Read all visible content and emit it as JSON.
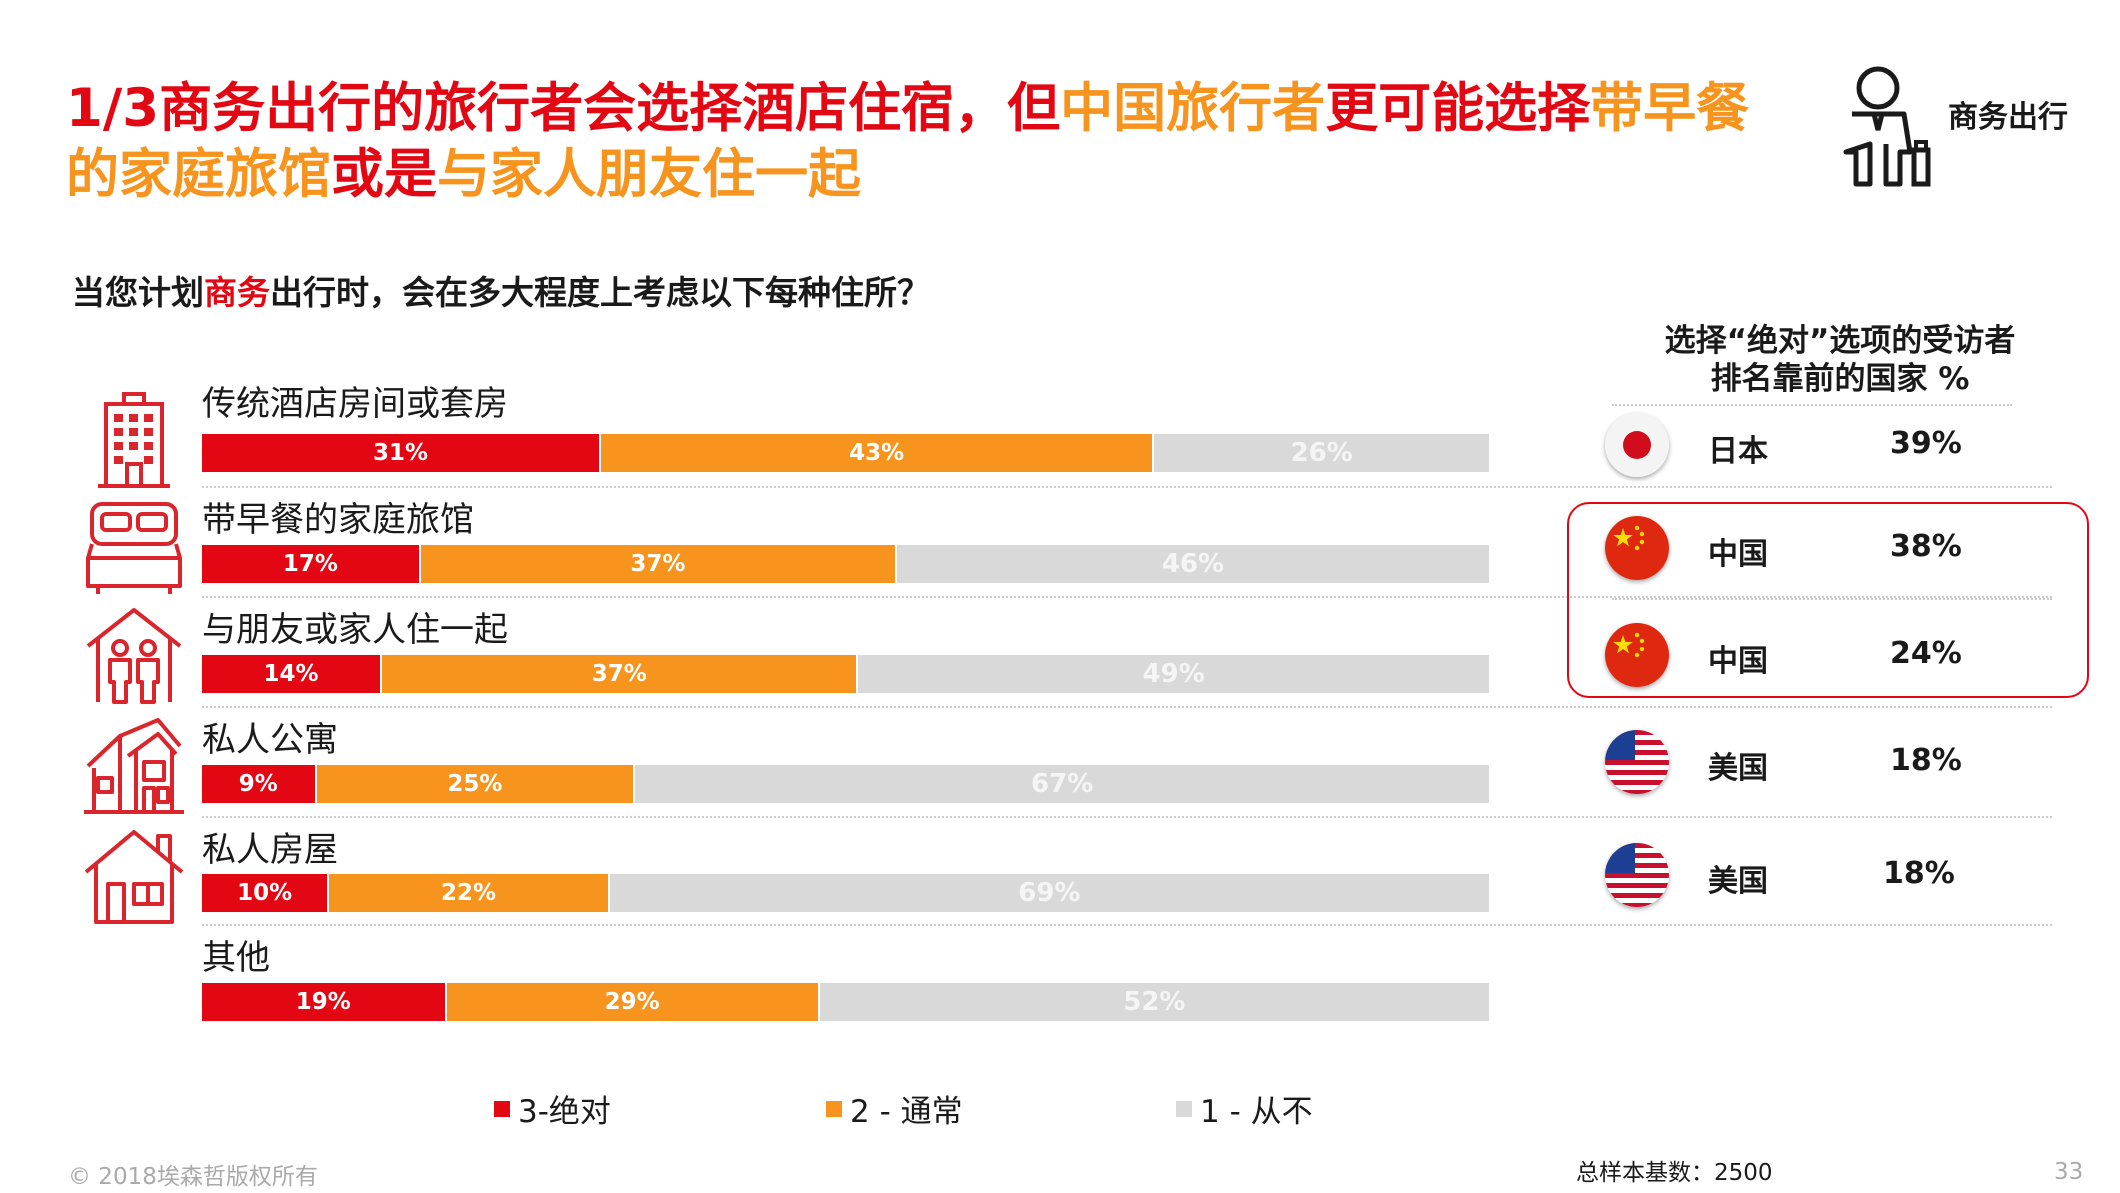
{
  "title": {
    "part1": "1/3商务出行的旅行者会选择酒店住宿，但",
    "part2": "中国旅行者",
    "part3": "更可能选择",
    "part4": "带早餐的家庭旅馆",
    "part5": "或是",
    "part6": "与家人朋友住一起"
  },
  "persona": {
    "label": "商务出行",
    "icon": "businessman-icon"
  },
  "question": {
    "prefix": "当您计划",
    "highlight": "商务",
    "suffix": "出行时，会在多大程度上考虑以下每种住所？"
  },
  "colors": {
    "red": "#e30613",
    "orange": "#f7941d",
    "grey": "#d9d9d9"
  },
  "chart_data": {
    "type": "bar",
    "orientation": "horizontal-stacked-100",
    "categories": [
      "传统酒店房间或套房",
      "带早餐的家庭旅馆",
      "与朋友或家人住一起",
      "私人公寓",
      "私人房屋",
      "其他"
    ],
    "category_icons": [
      "hotel-building-icon",
      "bed-icon",
      "family-house-icon",
      "apartment-icon",
      "house-icon",
      ""
    ],
    "series": [
      {
        "name": "3-绝对",
        "color": "#e30613",
        "values": [
          31,
          17,
          14,
          9,
          10,
          19
        ],
        "labels": [
          "31%",
          "17%",
          "14%",
          "9%",
          "10%",
          "19%"
        ]
      },
      {
        "name": "2 - 通常",
        "color": "#f7941d",
        "values": [
          43,
          37,
          37,
          25,
          22,
          29
        ],
        "labels": [
          "43%",
          "37%",
          "37%",
          "25%",
          "22%",
          "29%"
        ]
      },
      {
        "name": "1 - 从不",
        "color": "#d9d9d9",
        "values": [
          26,
          46,
          49,
          67,
          69,
          52
        ],
        "labels": [
          "26%",
          "46%",
          "49%",
          "67%",
          "69%",
          "52%"
        ]
      }
    ],
    "xlim": [
      0,
      100
    ],
    "legend_position": "bottom"
  },
  "ranking": {
    "title_line1": "选择“绝对”选项的受访者",
    "title_line2": "排名靠前的国家 %",
    "rows": [
      {
        "country": "日本",
        "flag": "japan-flag-icon",
        "value": "39%"
      },
      {
        "country": "中国",
        "flag": "china-flag-icon",
        "value": "38%"
      },
      {
        "country": "中国",
        "flag": "china-flag-icon",
        "value": "24%"
      },
      {
        "country": "美国",
        "flag": "usa-flag-icon",
        "value": "18%"
      },
      {
        "country": "美国",
        "flag": "usa-flag-icon",
        "value": "18%"
      }
    ]
  },
  "footer": {
    "copyright": "© 2018埃森哲版权所有",
    "sample": "总样本基数：2500",
    "page": "33"
  }
}
